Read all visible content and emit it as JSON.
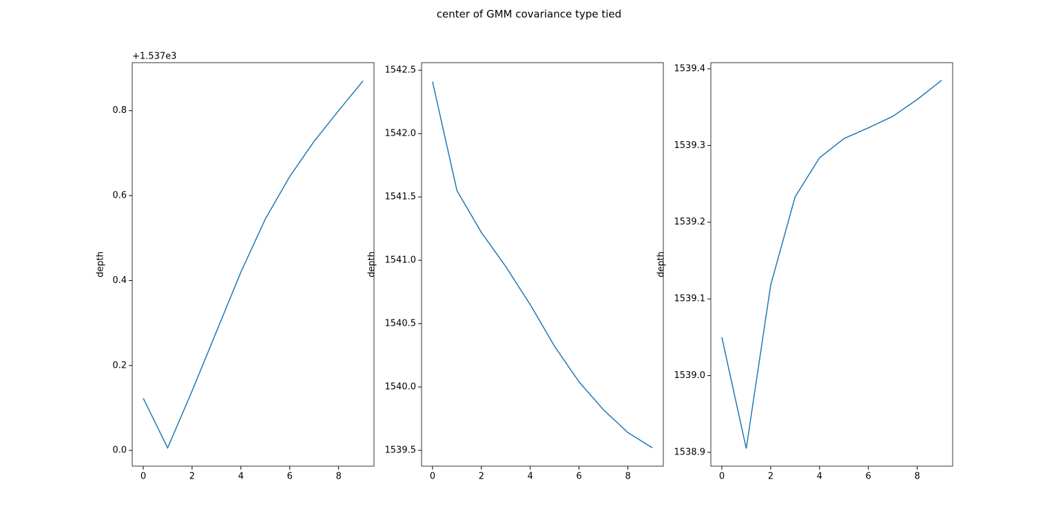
{
  "title": "center of GMM covariance type tied",
  "chart_data": [
    {
      "type": "line",
      "ylabel": "depth",
      "offset_text": "+1.537e3",
      "color": "#1f77b4",
      "x": [
        0,
        1,
        2,
        3,
        4,
        5,
        6,
        7,
        8,
        9
      ],
      "values": [
        0.123,
        0.006,
        0.14,
        0.28,
        0.42,
        0.545,
        0.645,
        0.728,
        0.8,
        0.87
      ],
      "xlim": [
        -0.45,
        9.45
      ],
      "xticks": [
        0,
        2,
        4,
        6,
        8
      ],
      "ylim": [
        -0.037,
        0.913
      ],
      "yticks": [
        {
          "value": 0,
          "label": "0.0"
        },
        0.2,
        0.4,
        0.6,
        0.8
      ]
    },
    {
      "type": "line",
      "ylabel": "depth",
      "color": "#1f77b4",
      "x": [
        0,
        1,
        2,
        3,
        4,
        5,
        6,
        7,
        8,
        9
      ],
      "values": [
        1542.41,
        1541.55,
        1541.22,
        1540.95,
        1540.65,
        1540.32,
        1540.04,
        1539.82,
        1539.64,
        1539.52
      ],
      "xlim": [
        -0.45,
        9.45
      ],
      "xticks": [
        0,
        2,
        4,
        6,
        8
      ],
      "ylim": [
        1539.375,
        1542.56
      ],
      "yticks": [
        1539.5,
        {
          "value": 1540,
          "label": "1540.0"
        },
        1540.5,
        {
          "value": 1541,
          "label": "1541.0"
        },
        1541.5,
        {
          "value": 1542,
          "label": "1542.0"
        },
        1542.5
      ]
    },
    {
      "type": "line",
      "ylabel": "depth",
      "color": "#1f77b4",
      "x": [
        0,
        1,
        2,
        3,
        4,
        5,
        6,
        7,
        8,
        9
      ],
      "values": [
        1539.05,
        1538.905,
        1539.118,
        1539.233,
        1539.284,
        1539.309,
        1539.323,
        1539.338,
        1539.36,
        1539.385
      ],
      "xlim": [
        -0.45,
        9.45
      ],
      "xticks": [
        0,
        2,
        4,
        6,
        8
      ],
      "ylim": [
        1538.882,
        1539.408
      ],
      "yticks": [
        1538.9,
        {
          "value": 1539,
          "label": "1539.0"
        },
        1539.1,
        1539.2,
        1539.3,
        1539.4
      ]
    }
  ]
}
